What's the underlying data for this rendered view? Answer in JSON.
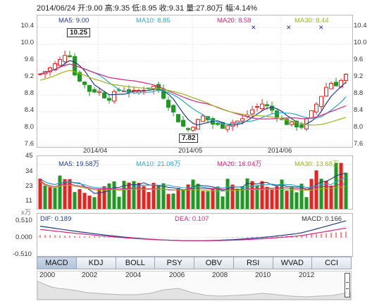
{
  "header": {
    "text": "2014/06/24 开:9.00 高:9.35 低:8.95 收:9.31 量:27.80万 幅:4.14%"
  },
  "main_chart": {
    "ma5": "MA5: 9.00",
    "ma10": "MA10: 8.85",
    "ma20": "MA20: 8.59",
    "ma30": "MA30: 8.44",
    "y_ticks": [
      "10.4",
      "10.0",
      "9.6",
      "9.2",
      "8.8",
      "8.4",
      "8.0",
      "7.6"
    ],
    "x_ticks": [
      "2014/04",
      "2014/05",
      "2014/06"
    ],
    "high_callout": "10.25",
    "low_callout": "7.82"
  },
  "volume_chart": {
    "ma5": "MA5: 19.58万",
    "ma10": "MA10: 21.08万",
    "ma20": "MA20: 16.04万",
    "ma30": "MA30: 13.68万",
    "y_ticks": [
      "45",
      "34",
      "23",
      "11"
    ],
    "unit": "x万"
  },
  "macd_chart": {
    "dif": "DIF: 0.189",
    "dea": "DEA: 0.107",
    "macd": "MACD: 0.166",
    "y_ticks": [
      "0.510",
      "0.000",
      "-0.510"
    ]
  },
  "tabs": [
    "MACD",
    "KDJ",
    "BOLL",
    "PSY",
    "OBV",
    "RSI",
    "WVAD",
    "CCI"
  ],
  "timeline": {
    "years": [
      "2000",
      "2002",
      "2004",
      "2006",
      "2008",
      "2010",
      "2012"
    ]
  },
  "colors": {
    "up": "#e8231f",
    "down": "#1e9a22",
    "ma5": "#1f3c88",
    "ma10": "#2aa9c9",
    "ma20": "#d6247e",
    "ma30": "#9bb41f"
  }
}
